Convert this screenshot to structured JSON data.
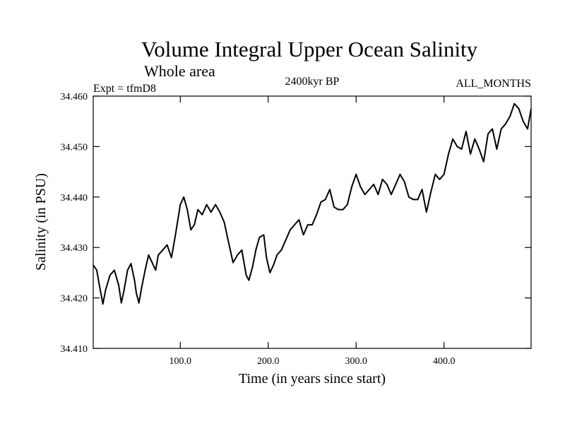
{
  "chart_data": {
    "type": "line",
    "title": "Volume Integral Upper Ocean Salinity",
    "subtitle": "Whole area",
    "left_label": "Expt = tfmD8",
    "center_label": "2400kyr BP",
    "right_label": "ALL_MONTHS",
    "xlabel": "Time (in years since start)",
    "ylabel": "Salinity (in PSU)",
    "xlim": [
      1,
      499
    ],
    "ylim": [
      34.41,
      34.46
    ],
    "x_ticks": [
      100,
      200,
      300,
      400
    ],
    "x_tick_labels": [
      "100.0",
      "200.0",
      "300.0",
      "400.0"
    ],
    "y_ticks": [
      34.41,
      34.42,
      34.43,
      34.44,
      34.45,
      34.46
    ],
    "y_tick_labels": [
      "34.410",
      "34.420",
      "34.430",
      "34.440",
      "34.450",
      "34.460"
    ],
    "grid": false,
    "series": [
      {
        "name": "salinity",
        "x": [
          1,
          5,
          8,
          12,
          15,
          20,
          25,
          30,
          33,
          36,
          40,
          44,
          48,
          50,
          53,
          56,
          60,
          64,
          68,
          72,
          75,
          80,
          85,
          90,
          95,
          100,
          104,
          108,
          112,
          116,
          120,
          125,
          130,
          135,
          140,
          145,
          150,
          155,
          160,
          165,
          170,
          175,
          178,
          182,
          186,
          190,
          195,
          198,
          202,
          206,
          210,
          215,
          220,
          225,
          230,
          235,
          240,
          245,
          250,
          255,
          260,
          265,
          270,
          275,
          280,
          285,
          290,
          295,
          300,
          305,
          310,
          315,
          320,
          325,
          330,
          335,
          340,
          345,
          350,
          355,
          360,
          365,
          370,
          375,
          380,
          385,
          390,
          395,
          400,
          405,
          410,
          415,
          420,
          425,
          430,
          435,
          440,
          445,
          450,
          455,
          460,
          465,
          470,
          475,
          480,
          485,
          490,
          495,
          499
        ],
        "values": [
          34.4265,
          34.4255,
          34.4225,
          34.4188,
          34.4215,
          34.4245,
          34.4255,
          34.4225,
          34.419,
          34.4215,
          34.4255,
          34.4268,
          34.4235,
          34.421,
          34.419,
          34.422,
          34.4255,
          34.4285,
          34.427,
          34.4255,
          34.4285,
          34.4295,
          34.4305,
          34.428,
          34.433,
          34.4385,
          34.44,
          34.4375,
          34.4335,
          34.4345,
          34.4375,
          34.4365,
          34.4385,
          34.437,
          34.4385,
          34.437,
          34.435,
          34.431,
          34.427,
          34.4285,
          34.4295,
          34.4245,
          34.4235,
          34.426,
          34.4295,
          34.432,
          34.4325,
          34.428,
          34.425,
          34.4265,
          34.4285,
          34.4295,
          34.4315,
          34.4335,
          34.4345,
          34.4355,
          34.4325,
          34.4345,
          34.4345,
          34.4365,
          34.439,
          34.4395,
          34.4415,
          34.438,
          34.4375,
          34.4375,
          34.4385,
          34.442,
          34.4445,
          34.442,
          34.4405,
          34.4415,
          34.4425,
          34.4405,
          34.4435,
          34.4425,
          34.4405,
          34.4425,
          34.4445,
          34.443,
          34.44,
          34.4395,
          34.4395,
          34.4415,
          34.437,
          34.441,
          34.4445,
          34.4435,
          34.4445,
          34.4485,
          34.4515,
          34.45,
          34.4495,
          34.453,
          34.4485,
          34.4515,
          34.4495,
          34.447,
          34.4525,
          34.4535,
          34.4495,
          34.4535,
          34.4545,
          34.456,
          34.4585,
          34.4575,
          34.455,
          34.4535,
          34.4575
        ]
      }
    ]
  }
}
